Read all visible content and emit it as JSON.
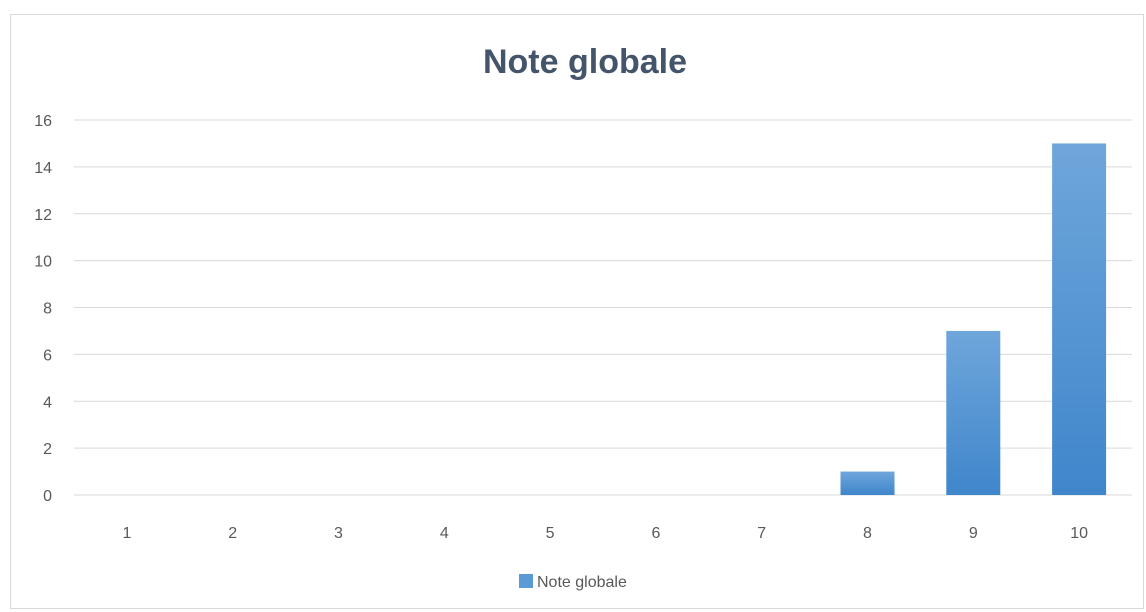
{
  "chart_data": {
    "type": "bar",
    "title": "Note globale",
    "xlabel": "",
    "ylabel": "",
    "categories": [
      "1",
      "2",
      "3",
      "4",
      "5",
      "6",
      "7",
      "8",
      "9",
      "10"
    ],
    "series": [
      {
        "name": "Note globale",
        "values": [
          0,
          0,
          0,
          0,
          0,
          0,
          0,
          1,
          7,
          15
        ],
        "color": "#5b9bd5"
      }
    ],
    "ylim": [
      0,
      16
    ],
    "yticks": [
      0,
      2,
      4,
      6,
      8,
      10,
      12,
      14,
      16
    ],
    "grid": true,
    "legend": "bottom"
  }
}
